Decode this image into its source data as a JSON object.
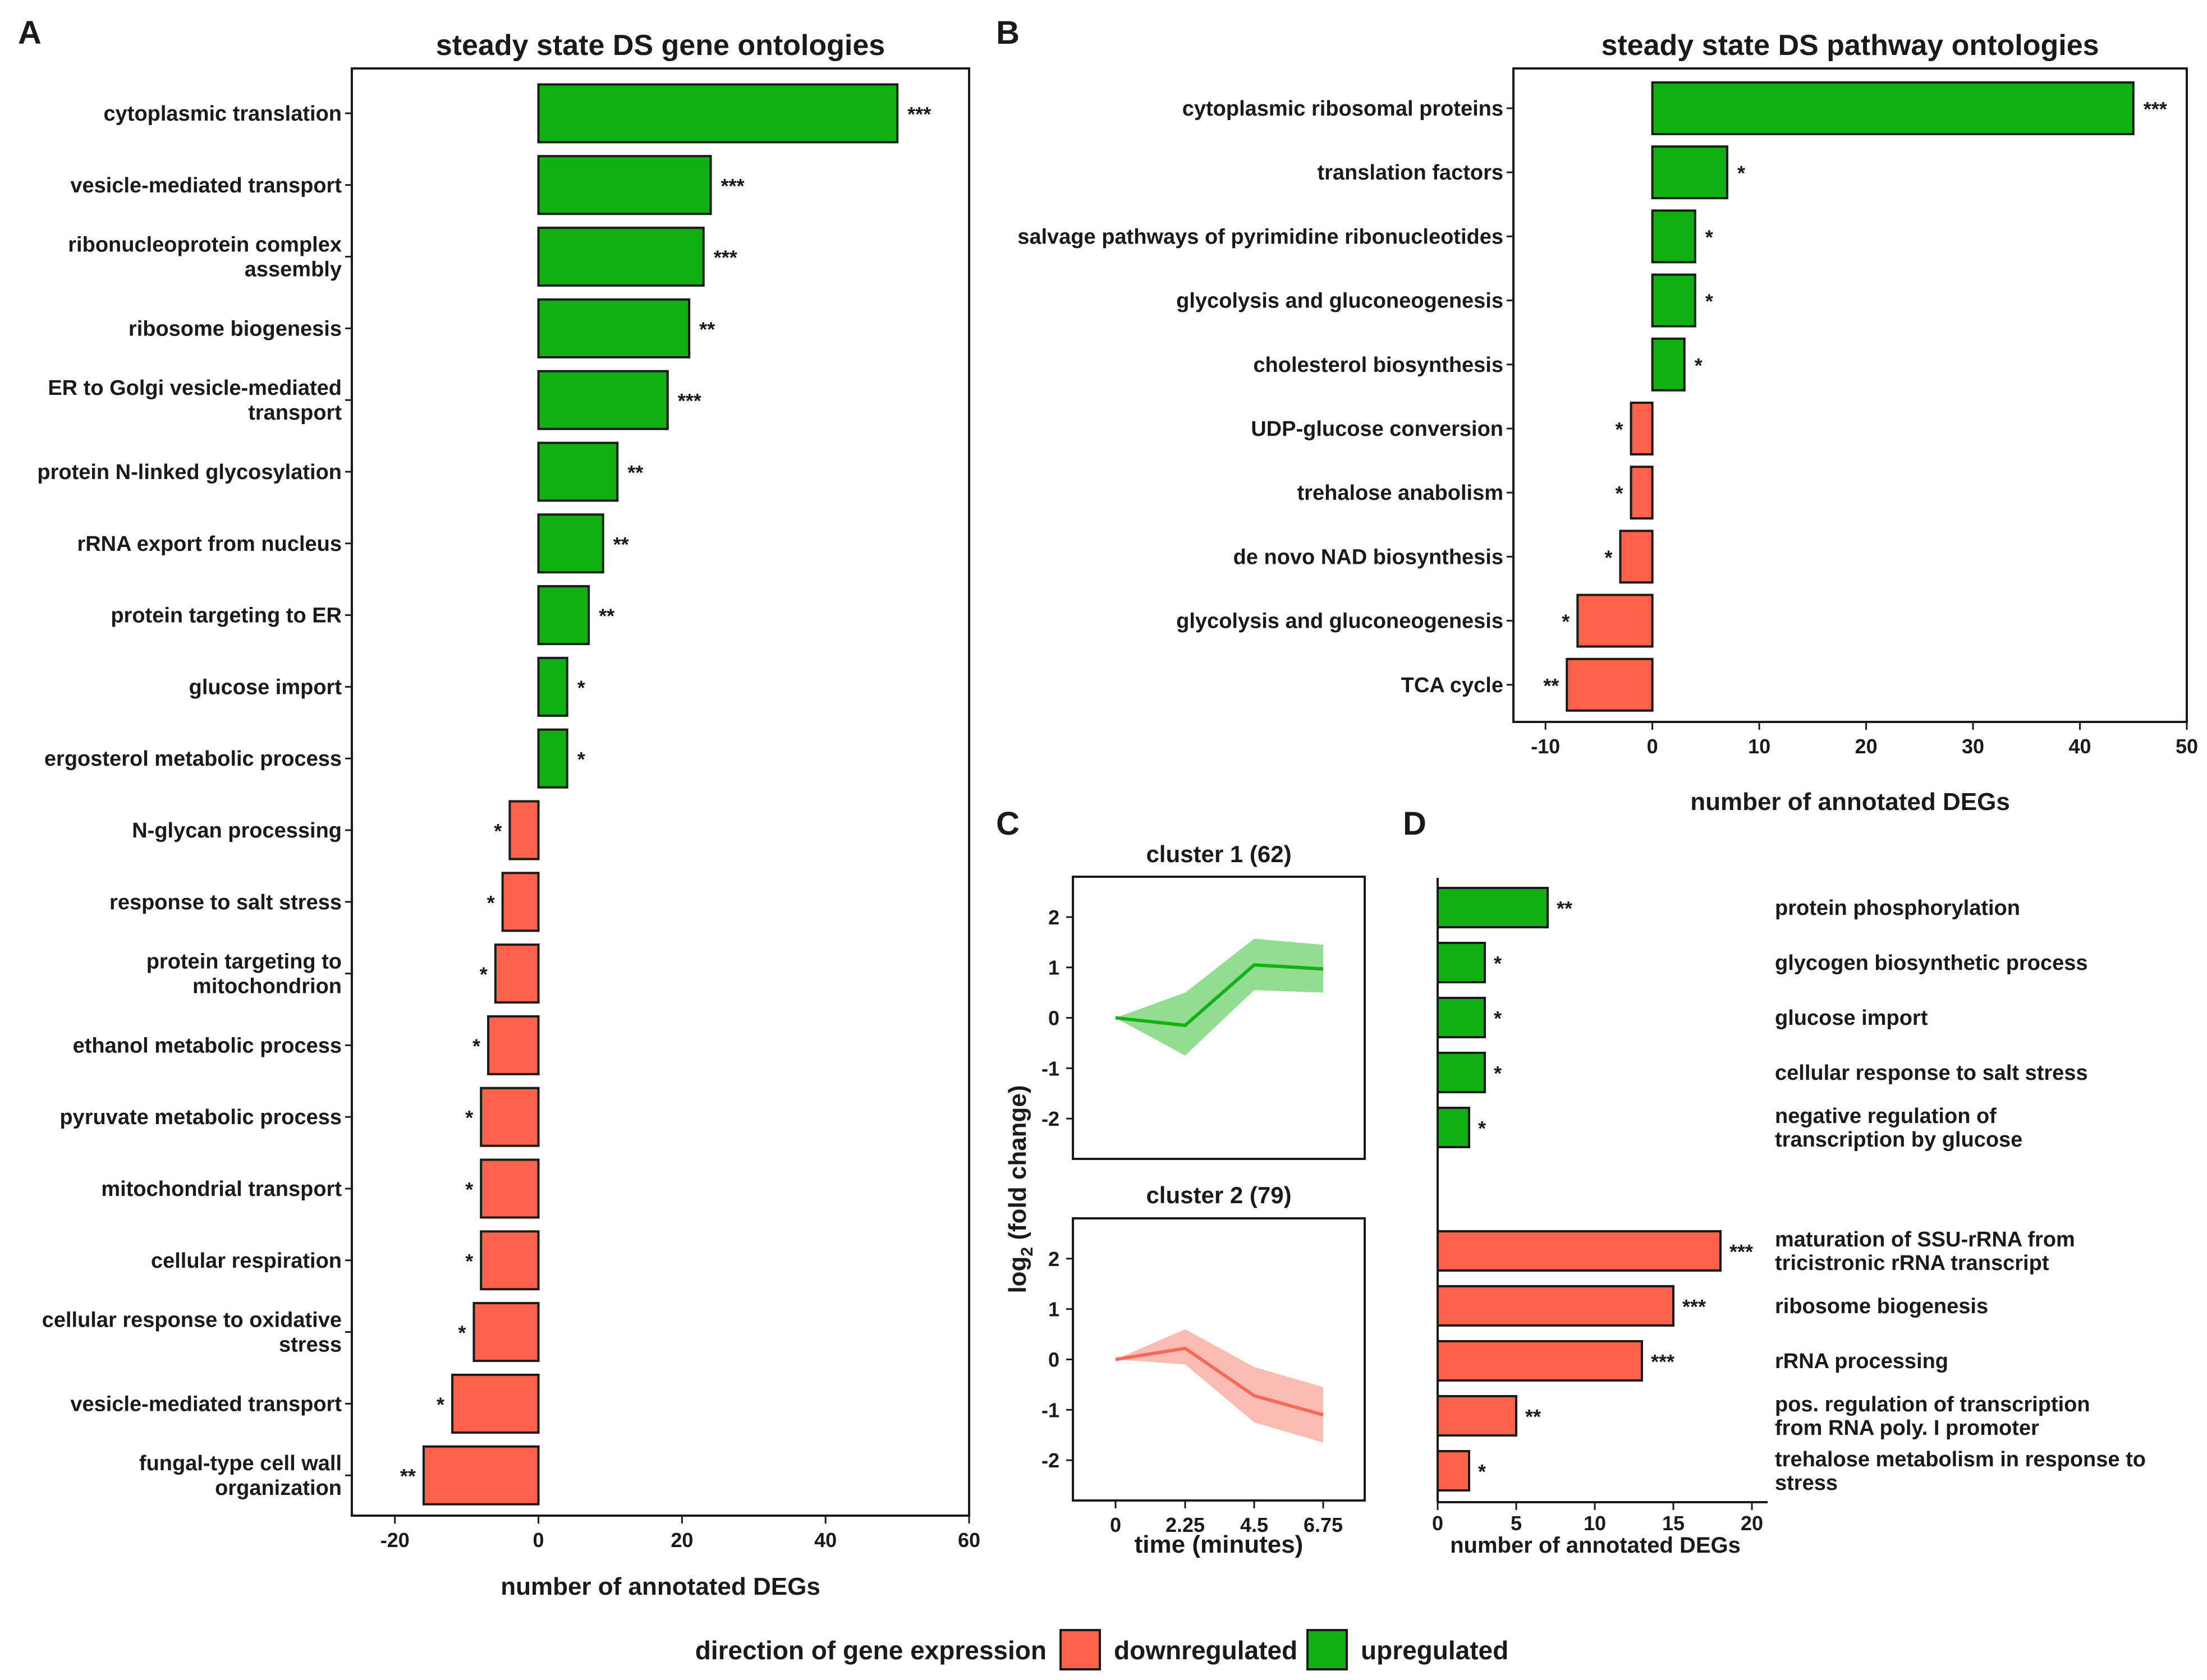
{
  "colors": {
    "up": "#10b010",
    "down": "#fe614a",
    "up_line": "#14b014",
    "up_band": "#93dd93",
    "down_line": "#fa6a56",
    "down_band": "#fbbcb4"
  },
  "legend": {
    "title": "direction of gene expression",
    "down_label": "downregulated",
    "up_label": "upregulated"
  },
  "chart_data": [
    {
      "panel": "A",
      "type": "bar",
      "orientation": "horizontal",
      "title": "steady state DS gene ontologies",
      "xlabel": "number of annotated DEGs",
      "xlim": [
        -26,
        60
      ],
      "xticks": [
        -20,
        0,
        20,
        40,
        60
      ],
      "categories": [
        [
          "cytoplasmic translation"
        ],
        [
          "vesicle-mediated transport"
        ],
        [
          "ribonucleoprotein complex",
          "assembly"
        ],
        [
          "ribosome biogenesis"
        ],
        [
          "ER to Golgi vesicle-mediated",
          "transport"
        ],
        [
          "protein N-linked glycosylation"
        ],
        [
          "rRNA export from nucleus"
        ],
        [
          "protein targeting to ER"
        ],
        [
          "glucose import"
        ],
        [
          "ergosterol metabolic process"
        ],
        [
          "N-glycan processing"
        ],
        [
          "response to salt stress"
        ],
        [
          "protein targeting to",
          "mitochondrion"
        ],
        [
          "ethanol metabolic process"
        ],
        [
          "pyruvate metabolic process"
        ],
        [
          "mitochondrial transport"
        ],
        [
          "cellular respiration"
        ],
        [
          "cellular response to oxidative",
          "stress"
        ],
        [
          "vesicle-mediated transport"
        ],
        [
          "fungal-type cell wall",
          "organization"
        ]
      ],
      "values": [
        50,
        24,
        23,
        21,
        18,
        11,
        9,
        7,
        4,
        4,
        -4,
        -5,
        -6,
        -7,
        -8,
        -8,
        -8,
        -9,
        -12,
        -16
      ],
      "significance": [
        "***",
        "***",
        "***",
        "**",
        "***",
        "**",
        "**",
        "**",
        "*",
        "*",
        "*",
        "*",
        "*",
        "*",
        "*",
        "*",
        "*",
        "*",
        "*",
        "**"
      ]
    },
    {
      "panel": "B",
      "type": "bar",
      "orientation": "horizontal",
      "title": "steady state DS pathway ontologies",
      "xlabel": "number of annotated DEGs",
      "xlim": [
        -13,
        50
      ],
      "xticks": [
        -10,
        0,
        10,
        20,
        30,
        40,
        50
      ],
      "categories": [
        [
          "cytoplasmic ribosomal proteins"
        ],
        [
          "translation factors"
        ],
        [
          "salvage pathways of pyrimidine ribonucleotides"
        ],
        [
          "glycolysis and gluconeogenesis"
        ],
        [
          "cholesterol biosynthesis"
        ],
        [
          "UDP-glucose conversion"
        ],
        [
          "trehalose anabolism"
        ],
        [
          "de novo NAD biosynthesis"
        ],
        [
          "glycolysis and gluconeogenesis"
        ],
        [
          "TCA cycle"
        ]
      ],
      "values": [
        45,
        7,
        4,
        4,
        3,
        -2,
        -2,
        -3,
        -7,
        -8
      ],
      "significance": [
        "***",
        "*",
        "*",
        "*",
        "*",
        "*",
        "*",
        "*",
        "*",
        "**"
      ]
    },
    {
      "panel": "C",
      "type": "line",
      "ylabel": "log",
      "ylabel_sub": "2",
      "ylabel_rest": " (fold change)",
      "xlabel": "time (minutes)",
      "x": [
        0,
        2.25,
        4.5,
        6.75
      ],
      "xticks": [
        "0",
        "2.25",
        "4.5",
        "6.75"
      ],
      "ylim": [
        -2.8,
        2.8
      ],
      "yticks": [
        2,
        1,
        0,
        -1,
        -2
      ],
      "series": [
        {
          "name": "cluster 1 (62)",
          "values": [
            0,
            -0.15,
            1.05,
            0.97
          ],
          "lower": [
            0,
            -0.75,
            0.55,
            0.5
          ],
          "upper": [
            0,
            0.5,
            1.57,
            1.45
          ]
        },
        {
          "name": "cluster 2 (79)",
          "values": [
            0,
            0.22,
            -0.72,
            -1.1
          ],
          "lower": [
            0,
            -0.1,
            -1.25,
            -1.65
          ],
          "upper": [
            0,
            0.6,
            -0.15,
            -0.55
          ]
        }
      ]
    },
    {
      "panel": "D",
      "type": "bar",
      "orientation": "horizontal",
      "xlabel": "number of annotated DEGs",
      "xlim": [
        0,
        21
      ],
      "xticks": [
        0,
        5,
        10,
        15,
        20
      ],
      "categories": [
        [
          "protein phosphorylation"
        ],
        [
          "glycogen biosynthetic process"
        ],
        [
          "glucose import"
        ],
        [
          "cellular response to salt stress"
        ],
        [
          "negative regulation of",
          "transcription by glucose"
        ],
        [
          "maturation of SSU-rRNA from",
          "tricistronic rRNA transcript"
        ],
        [
          "ribosome biogenesis"
        ],
        [
          "rRNA processing"
        ],
        [
          "pos. regulation of transcription",
          "from RNA poly. I promoter"
        ],
        [
          "trehalose metabolism in response to",
          "stress"
        ]
      ],
      "values": [
        7,
        3,
        3,
        3,
        2,
        18,
        15,
        13,
        5,
        2
      ],
      "direction": [
        "up",
        "up",
        "up",
        "up",
        "up",
        "down",
        "down",
        "down",
        "down",
        "down"
      ],
      "significance": [
        "**",
        "*",
        "*",
        "*",
        "*",
        "***",
        "***",
        "***",
        "**",
        "*"
      ]
    }
  ]
}
